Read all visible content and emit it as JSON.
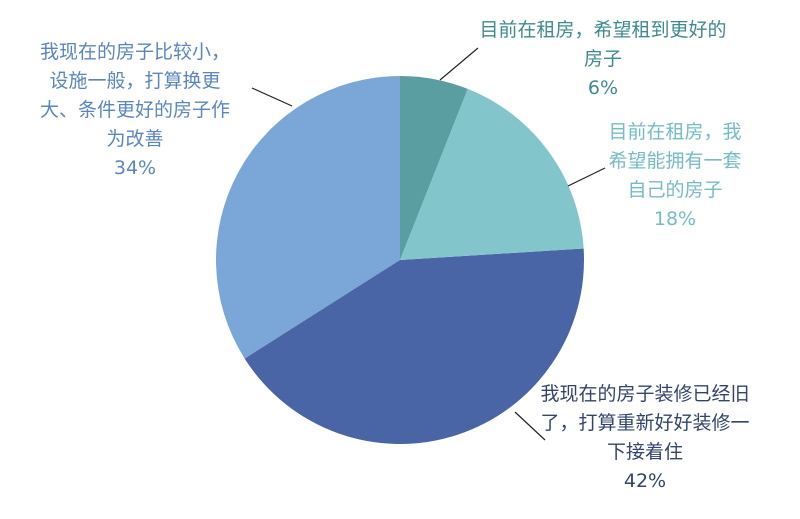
{
  "chart_data": {
    "type": "pie",
    "categories": [
      "目前在租房，希望租到更好的房子",
      "目前在租房，我希望能拥有一套自己的房子",
      "我现在的房子装修已经旧了，打算重新好好装修一下接着住",
      "我现在的房子比较小，设施一般，打算换更大、条件更好的房子作为改善"
    ],
    "values": [
      6,
      18,
      42,
      34
    ],
    "value_labels": [
      "6%",
      "18%",
      "42%",
      "34%"
    ],
    "colors": [
      "#5a9ea1",
      "#82c6cc",
      "#4a65a6",
      "#7ba7d8"
    ]
  }
}
